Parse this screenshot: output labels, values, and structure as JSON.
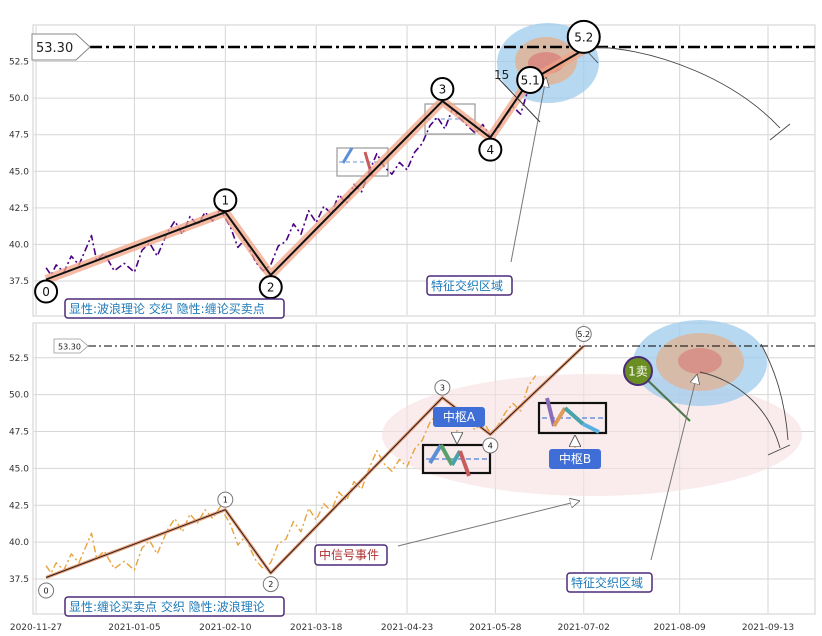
{
  "chart_data": [
    {
      "type": "line",
      "panel": "top",
      "ylim": [
        35.0,
        55.0
      ],
      "yticks": [
        37.5,
        40.0,
        42.5,
        45.0,
        47.5,
        50.0,
        52.5
      ],
      "grid": true,
      "reference_line": {
        "label": "53.30",
        "value": 53.3
      },
      "series": [
        {
          "kind": "price-dashdot",
          "color": "#4b0082",
          "points": [
            [
              "2020-12-01",
              38.4
            ],
            [
              "2020-12-03",
              37.9
            ],
            [
              "2020-12-05",
              38.6
            ],
            [
              "2020-12-08",
              38.1
            ],
            [
              "2020-12-11",
              39.2
            ],
            [
              "2020-12-14",
              38.6
            ],
            [
              "2020-12-17",
              39.8
            ],
            [
              "2020-12-19",
              40.6
            ],
            [
              "2020-12-21",
              38.9
            ],
            [
              "2020-12-24",
              39.4
            ],
            [
              "2020-12-28",
              38.2
            ],
            [
              "2021-01-01",
              38.7
            ],
            [
              "2021-01-05",
              38.1
            ],
            [
              "2021-01-08",
              39.6
            ],
            [
              "2021-01-11",
              40.1
            ],
            [
              "2021-01-14",
              39.2
            ],
            [
              "2021-01-18",
              40.8
            ],
            [
              "2021-01-21",
              41.6
            ],
            [
              "2021-01-24",
              40.7
            ],
            [
              "2021-01-27",
              41.9
            ],
            [
              "2021-01-30",
              41.3
            ],
            [
              "2021-02-02",
              42.2
            ],
            [
              "2021-02-05",
              41.6
            ],
            [
              "2021-02-08",
              42.4
            ],
            [
              "2021-02-10",
              41.8
            ],
            [
              "2021-02-12",
              41.2
            ],
            [
              "2021-02-15",
              39.8
            ],
            [
              "2021-02-18",
              40.4
            ],
            [
              "2021-02-20",
              39.5
            ],
            [
              "2021-02-22",
              38.8
            ],
            [
              "2021-02-25",
              38.2
            ],
            [
              "2021-02-28",
              38.6
            ],
            [
              "2021-03-03",
              39.9
            ],
            [
              "2021-03-06",
              40.2
            ],
            [
              "2021-03-09",
              41.4
            ],
            [
              "2021-03-12",
              40.7
            ],
            [
              "2021-03-15",
              42.3
            ],
            [
              "2021-03-18",
              41.5
            ],
            [
              "2021-03-21",
              42.6
            ],
            [
              "2021-03-24",
              42.1
            ],
            [
              "2021-03-27",
              43.4
            ],
            [
              "2021-03-30",
              42.8
            ],
            [
              "2021-04-02",
              44.1
            ],
            [
              "2021-04-05",
              43.6
            ],
            [
              "2021-04-08",
              45.0
            ],
            [
              "2021-04-11",
              46.2
            ],
            [
              "2021-04-14",
              45.3
            ],
            [
              "2021-04-17",
              44.8
            ],
            [
              "2021-04-20",
              45.6
            ],
            [
              "2021-04-23",
              45.1
            ],
            [
              "2021-04-26",
              46.3
            ],
            [
              "2021-04-29",
              46.9
            ],
            [
              "2021-05-02",
              48.1
            ],
            [
              "2021-05-05",
              48.7
            ],
            [
              "2021-05-08",
              47.9
            ],
            [
              "2021-05-11",
              49.3
            ],
            [
              "2021-05-14",
              48.6
            ],
            [
              "2021-05-17",
              48.1
            ],
            [
              "2021-05-20",
              47.6
            ],
            [
              "2021-05-23",
              48.2
            ],
            [
              "2021-05-26",
              47.4
            ],
            [
              "2021-05-29",
              47.9
            ],
            [
              "2021-06-01",
              48.8
            ],
            [
              "2021-06-04",
              49.4
            ],
            [
              "2021-06-07",
              48.9
            ],
            [
              "2021-06-10",
              50.6
            ],
            [
              "2021-06-13",
              51.3
            ]
          ]
        }
      ],
      "wave_points": [
        {
          "label": "0",
          "date": "2020-12-01",
          "value": 37.6
        },
        {
          "label": "1",
          "date": "2021-02-10",
          "value": 42.2
        },
        {
          "label": "2",
          "date": "2021-02-28",
          "value": 37.9
        },
        {
          "label": "3",
          "date": "2021-05-07",
          "value": 49.8
        },
        {
          "label": "4",
          "date": "2021-05-26",
          "value": 47.3
        },
        {
          "label": "5.1",
          "date": "2021-06-10",
          "value": 51.1
        },
        {
          "label": "5.2",
          "date": "2021-07-02",
          "value": 53.3
        }
      ],
      "extra_labels": [
        "15"
      ],
      "annotations": [
        "特征交织区域",
        "显性:波浪理论 交织 隐性:缠论买卖点"
      ]
    },
    {
      "type": "line",
      "panel": "bottom",
      "ylim": [
        35.0,
        55.0
      ],
      "yticks": [
        37.5,
        40.0,
        42.5,
        45.0,
        47.5,
        50.0,
        52.5
      ],
      "grid": true,
      "reference_line": {
        "label": "53.30",
        "value": 53.3
      },
      "xtick_labels": [
        "2020-11-27",
        "2021-01-05",
        "2021-02-10",
        "2021-03-18",
        "2021-04-23",
        "2021-05-28",
        "2021-07-02",
        "2021-08-09",
        "2021-09-13"
      ],
      "series": [
        {
          "kind": "price-dashdot",
          "color": "#e8a33a",
          "points": [
            [
              "2020-12-01",
              38.4
            ],
            [
              "2020-12-03",
              37.9
            ],
            [
              "2020-12-05",
              38.6
            ],
            [
              "2020-12-08",
              38.1
            ],
            [
              "2020-12-11",
              39.2
            ],
            [
              "2020-12-14",
              38.6
            ],
            [
              "2020-12-17",
              39.8
            ],
            [
              "2020-12-19",
              40.6
            ],
            [
              "2020-12-21",
              38.9
            ],
            [
              "2020-12-24",
              39.4
            ],
            [
              "2020-12-28",
              38.2
            ],
            [
              "2021-01-01",
              38.7
            ],
            [
              "2021-01-05",
              38.1
            ],
            [
              "2021-01-08",
              39.6
            ],
            [
              "2021-01-11",
              40.1
            ],
            [
              "2021-01-14",
              39.2
            ],
            [
              "2021-01-18",
              40.8
            ],
            [
              "2021-01-21",
              41.6
            ],
            [
              "2021-01-24",
              40.7
            ],
            [
              "2021-01-27",
              41.9
            ],
            [
              "2021-01-30",
              41.3
            ],
            [
              "2021-02-02",
              42.2
            ],
            [
              "2021-02-05",
              41.6
            ],
            [
              "2021-02-08",
              42.4
            ],
            [
              "2021-02-10",
              41.8
            ],
            [
              "2021-02-12",
              41.2
            ],
            [
              "2021-02-15",
              39.8
            ],
            [
              "2021-02-18",
              40.4
            ],
            [
              "2021-02-20",
              39.5
            ],
            [
              "2021-02-22",
              38.8
            ],
            [
              "2021-02-25",
              38.2
            ],
            [
              "2021-02-28",
              38.6
            ],
            [
              "2021-03-03",
              39.9
            ],
            [
              "2021-03-06",
              40.2
            ],
            [
              "2021-03-09",
              41.4
            ],
            [
              "2021-03-12",
              40.7
            ],
            [
              "2021-03-15",
              42.3
            ],
            [
              "2021-03-18",
              41.5
            ],
            [
              "2021-03-21",
              42.6
            ],
            [
              "2021-03-24",
              42.1
            ],
            [
              "2021-03-27",
              43.4
            ],
            [
              "2021-03-30",
              42.8
            ],
            [
              "2021-04-02",
              44.1
            ],
            [
              "2021-04-05",
              43.6
            ],
            [
              "2021-04-08",
              45.0
            ],
            [
              "2021-04-11",
              46.2
            ],
            [
              "2021-04-14",
              45.3
            ],
            [
              "2021-04-17",
              44.8
            ],
            [
              "2021-04-20",
              45.6
            ],
            [
              "2021-04-23",
              45.1
            ],
            [
              "2021-04-26",
              46.3
            ],
            [
              "2021-04-29",
              46.9
            ],
            [
              "2021-05-02",
              48.1
            ],
            [
              "2021-05-05",
              48.7
            ],
            [
              "2021-05-08",
              47.9
            ],
            [
              "2021-05-11",
              49.3
            ],
            [
              "2021-05-14",
              48.6
            ],
            [
              "2021-05-17",
              48.1
            ],
            [
              "2021-05-20",
              47.6
            ],
            [
              "2021-05-23",
              48.2
            ],
            [
              "2021-05-26",
              47.4
            ],
            [
              "2021-05-29",
              47.9
            ],
            [
              "2021-06-01",
              48.8
            ],
            [
              "2021-06-04",
              49.4
            ],
            [
              "2021-06-07",
              48.9
            ],
            [
              "2021-06-10",
              50.6
            ],
            [
              "2021-06-13",
              51.3
            ]
          ]
        }
      ],
      "wave_points": [
        {
          "label": "0",
          "date": "2020-12-01",
          "value": 37.6
        },
        {
          "label": "1",
          "date": "2021-02-10",
          "value": 42.2
        },
        {
          "label": "2",
          "date": "2021-02-28",
          "value": 37.9
        },
        {
          "label": "3",
          "date": "2021-05-07",
          "value": 49.8
        },
        {
          "label": "4",
          "date": "2021-05-26",
          "value": 47.3
        },
        {
          "label": "5.2",
          "date": "2021-07-02",
          "value": 53.3
        }
      ],
      "sell_signal": {
        "label": "1卖",
        "date": "2021-06-10",
        "value": 51.2
      },
      "annotations": [
        "中枢A",
        "中枢B",
        "中信号事件",
        "特征交织区域",
        "显性:缠论买卖点 交织 隐性:波浪理论"
      ]
    }
  ]
}
